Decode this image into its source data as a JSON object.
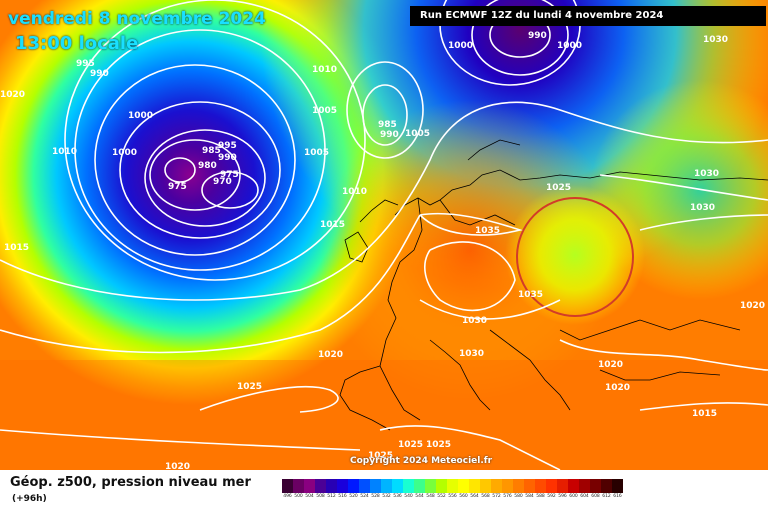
{
  "header": {
    "date": "vendredi 8 novembre 2024",
    "time": "13:00 locale",
    "run": "Run ECMWF 12Z du lundi 4 novembre 2024"
  },
  "copyright": "Copyright 2024 Meteociel.fr",
  "footer": {
    "title": "Géop. z500, pression niveau mer",
    "lead": "(+96h)"
  },
  "isobar_labels": [
    "995",
    "990",
    "1000",
    "1010",
    "1010",
    "1000",
    "1005",
    "1005",
    "1000",
    "990",
    "1000",
    "1030",
    "1020",
    "1000",
    "985",
    "990",
    "1005",
    "995",
    "985",
    "980",
    "990",
    "975",
    "970",
    "975",
    "1010",
    "1005",
    "1030",
    "1025",
    "1030",
    "1015",
    "1015",
    "1035",
    "1035",
    "1030",
    "1030",
    "1020",
    "1020",
    "1020",
    "1020",
    "1025",
    "1015",
    "1025",
    "1025",
    "1025",
    "1020"
  ],
  "scale_labels": [
    "496",
    "500",
    "504",
    "508",
    "512",
    "516",
    "520",
    "524",
    "528",
    "532",
    "536",
    "540",
    "544",
    "548",
    "552",
    "556",
    "560",
    "564",
    "568",
    "572",
    "576",
    "580",
    "584",
    "588",
    "592",
    "596",
    "600",
    "604",
    "608",
    "612",
    "616"
  ],
  "scale_colors": [
    "#3a0033",
    "#6a0063",
    "#8a0080",
    "#4b0096",
    "#2800b4",
    "#1900dc",
    "#0019ff",
    "#0050ff",
    "#0082ff",
    "#00b4ff",
    "#00dcff",
    "#19ffd2",
    "#3cff8c",
    "#78ff3c",
    "#b4ff00",
    "#e6ff00",
    "#ffff00",
    "#ffe600",
    "#ffc800",
    "#ffaa00",
    "#ff9600",
    "#ff7d00",
    "#ff6400",
    "#ff4b00",
    "#ff3200",
    "#e61e00",
    "#c80000",
    "#a00000",
    "#780000",
    "#500000",
    "#280000"
  ],
  "annotation": {
    "color": "#d23c28"
  }
}
